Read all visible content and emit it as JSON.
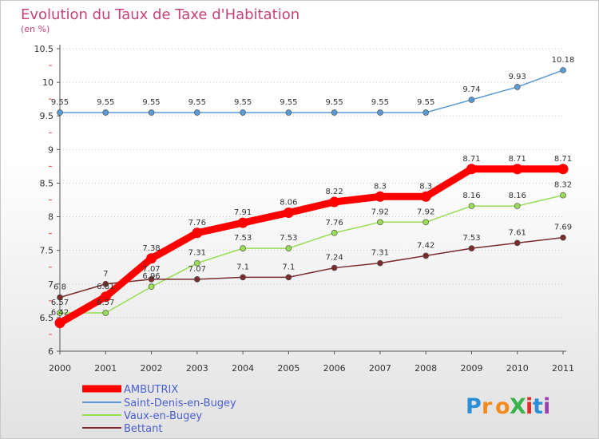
{
  "chart_data": {
    "type": "line",
    "title": "Evolution du Taux de Taxe d'Habitation",
    "subtitle": "(en %)",
    "x": [
      "2000",
      "2001",
      "2002",
      "2003",
      "2004",
      "2005",
      "2006",
      "2007",
      "2008",
      "2009",
      "2010",
      "2011"
    ],
    "ylim": [
      6,
      10.5
    ],
    "yticks": [
      "6",
      "6.5",
      "7",
      "7.5",
      "8",
      "8.5",
      "9",
      "9.5",
      "10",
      "10.5"
    ],
    "grid": "horizontal dotted",
    "legend_position": "bottom-left",
    "series": [
      {
        "name": "AMBUTRIX",
        "color": "#ff0000",
        "values": [
          6.42,
          6.81,
          7.38,
          7.76,
          7.91,
          8.06,
          8.22,
          8.3,
          8.3,
          8.71,
          8.71,
          8.71
        ],
        "labels": [
          "6.42",
          "6.81",
          "7.38",
          "7.76",
          "7.91",
          "8.06",
          "8.22",
          "8.3",
          "8.3",
          "8.71",
          "8.71",
          "8.71"
        ]
      },
      {
        "name": "Saint-Denis-en-Bugey",
        "color": "#5b9bd5",
        "values": [
          9.55,
          9.55,
          9.55,
          9.55,
          9.55,
          9.55,
          9.55,
          9.55,
          9.55,
          9.74,
          9.93,
          10.18
        ],
        "labels": [
          "9.55",
          "9.55",
          "9.55",
          "9.55",
          "9.55",
          "9.55",
          "9.55",
          "9.55",
          "9.55",
          "9.74",
          "9.93",
          "10.18"
        ]
      },
      {
        "name": "Vaux-en-Bugey",
        "color": "#99dd55",
        "values": [
          6.57,
          6.57,
          6.96,
          7.31,
          7.53,
          7.53,
          7.76,
          7.92,
          7.92,
          8.16,
          8.16,
          8.32
        ],
        "labels": [
          "6.57",
          "6.57",
          "6.96",
          "7.31",
          "7.53",
          "7.53",
          "7.76",
          "7.92",
          "7.92",
          "8.16",
          "8.16",
          "8.32"
        ]
      },
      {
        "name": "Bettant",
        "color": "#7a2b2b",
        "values": [
          6.8,
          7.0,
          7.07,
          7.07,
          7.1,
          7.1,
          7.24,
          7.31,
          7.42,
          7.53,
          7.61,
          7.69
        ],
        "labels": [
          "6.8",
          "7",
          "7.07",
          "7.07",
          "7.1",
          "7.1",
          "7.24",
          "7.31",
          "7.42",
          "7.53",
          "7.61",
          "7.69"
        ]
      }
    ]
  },
  "logo": {
    "text": "ProXiti",
    "letters": [
      "P",
      "r",
      "o",
      "X",
      "i",
      "t",
      "i"
    ],
    "colors": [
      "#2b8fd8",
      "#f58a1f",
      "#f58a1f",
      "#3bb34a",
      "#e52a2a",
      "#2b8fd8",
      "#9b3fb0"
    ]
  }
}
